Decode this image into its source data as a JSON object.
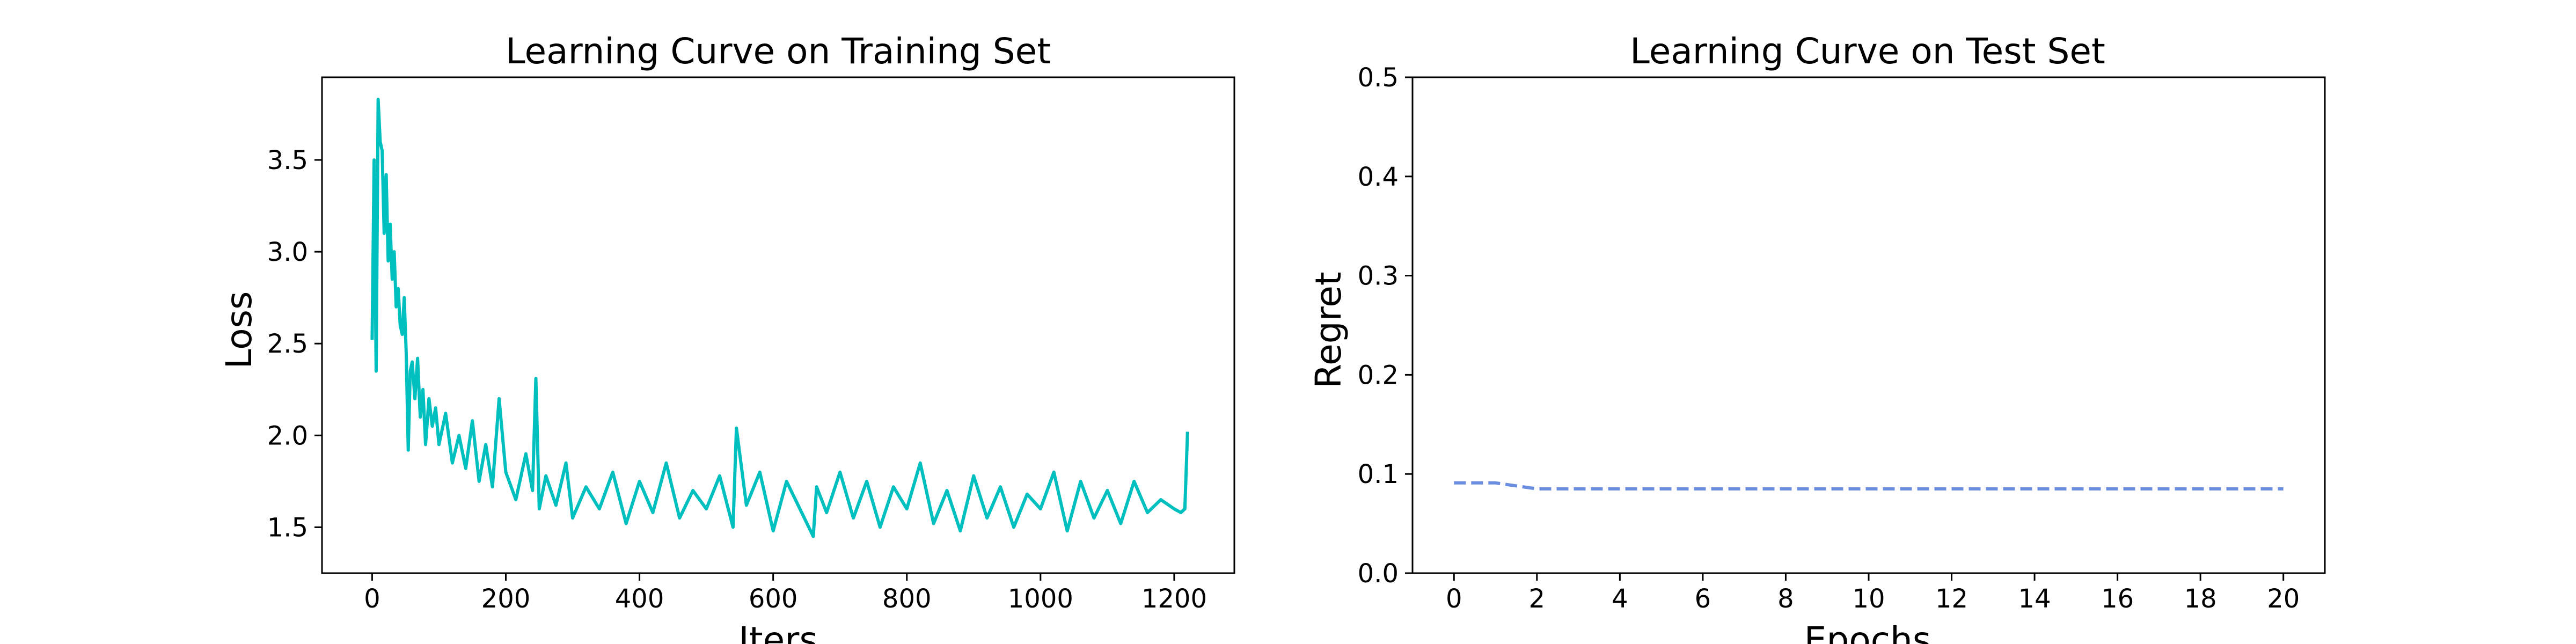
{
  "chart_data": [
    {
      "type": "line",
      "title": "Learning Curve on Training Set",
      "xlabel": "Iters",
      "ylabel": "Loss",
      "xlim": [
        -75,
        1290
      ],
      "ylim": [
        1.25,
        3.95
      ],
      "xticks": [
        0,
        200,
        400,
        600,
        800,
        1000,
        1200
      ],
      "yticks": [
        1.5,
        2.0,
        2.5,
        3.0,
        3.5
      ],
      "xtick_labels": [
        "0",
        "200",
        "400",
        "600",
        "800",
        "1000",
        "1200"
      ],
      "ytick_labels": [
        "1.5",
        "2.0",
        "2.5",
        "3.0",
        "3.5"
      ],
      "grid": false,
      "series": [
        {
          "color": "#00bfbf",
          "x": [
            0,
            3,
            6,
            9,
            12,
            15,
            18,
            21,
            24,
            27,
            30,
            33,
            36,
            39,
            42,
            45,
            48,
            51,
            54,
            57,
            60,
            64,
            68,
            72,
            76,
            80,
            85,
            90,
            95,
            100,
            110,
            120,
            130,
            140,
            150,
            160,
            170,
            180,
            190,
            200,
            215,
            230,
            240,
            245,
            250,
            260,
            275,
            290,
            300,
            320,
            340,
            360,
            380,
            400,
            420,
            440,
            460,
            480,
            500,
            520,
            540,
            545,
            560,
            580,
            600,
            620,
            640,
            660,
            665,
            680,
            700,
            720,
            740,
            760,
            780,
            800,
            820,
            840,
            860,
            880,
            900,
            920,
            940,
            960,
            980,
            1000,
            1020,
            1040,
            1060,
            1080,
            1100,
            1120,
            1140,
            1160,
            1180,
            1200,
            1210,
            1216,
            1220
          ],
          "y": [
            2.52,
            3.5,
            2.35,
            3.83,
            3.6,
            3.55,
            3.1,
            3.42,
            2.95,
            3.15,
            2.85,
            3.0,
            2.7,
            2.8,
            2.6,
            2.55,
            2.75,
            2.45,
            1.92,
            2.35,
            2.4,
            2.2,
            2.42,
            2.1,
            2.25,
            1.95,
            2.2,
            2.05,
            2.15,
            1.95,
            2.12,
            1.85,
            2.0,
            1.82,
            2.08,
            1.75,
            1.95,
            1.72,
            2.2,
            1.8,
            1.65,
            1.9,
            1.7,
            2.31,
            1.6,
            1.78,
            1.62,
            1.85,
            1.55,
            1.72,
            1.6,
            1.8,
            1.52,
            1.75,
            1.58,
            1.85,
            1.55,
            1.7,
            1.6,
            1.78,
            1.5,
            2.04,
            1.62,
            1.8,
            1.48,
            1.75,
            1.6,
            1.45,
            1.72,
            1.58,
            1.8,
            1.55,
            1.75,
            1.5,
            1.72,
            1.6,
            1.85,
            1.52,
            1.7,
            1.48,
            1.78,
            1.55,
            1.72,
            1.5,
            1.68,
            1.6,
            1.8,
            1.48,
            1.75,
            1.55,
            1.7,
            1.52,
            1.75,
            1.58,
            1.65,
            1.6,
            1.58,
            1.6,
            2.02
          ]
        }
      ]
    },
    {
      "type": "line",
      "title": "Learning Curve on Test Set",
      "xlabel": "Epochs",
      "ylabel": "Regret",
      "xlim": [
        -1,
        21
      ],
      "ylim": [
        0.0,
        0.5
      ],
      "xticks": [
        0,
        2,
        4,
        6,
        8,
        10,
        12,
        14,
        16,
        18,
        20
      ],
      "yticks": [
        0.0,
        0.1,
        0.2,
        0.3,
        0.4,
        0.5
      ],
      "xtick_labels": [
        "0",
        "2",
        "4",
        "6",
        "8",
        "10",
        "12",
        "14",
        "16",
        "18",
        "20"
      ],
      "ytick_labels": [
        "0.0",
        "0.1",
        "0.2",
        "0.3",
        "0.4",
        "0.5"
      ],
      "grid": false,
      "series": [
        {
          "color": "#6b8de0",
          "dashed": true,
          "x": [
            0,
            1,
            2,
            3,
            4,
            5,
            6,
            7,
            8,
            9,
            10,
            11,
            12,
            13,
            14,
            15,
            16,
            17,
            18,
            19,
            20
          ],
          "y": [
            0.091,
            0.091,
            0.085,
            0.085,
            0.085,
            0.085,
            0.085,
            0.085,
            0.085,
            0.085,
            0.085,
            0.085,
            0.085,
            0.085,
            0.085,
            0.085,
            0.085,
            0.085,
            0.085,
            0.085,
            0.085
          ]
        }
      ]
    }
  ]
}
